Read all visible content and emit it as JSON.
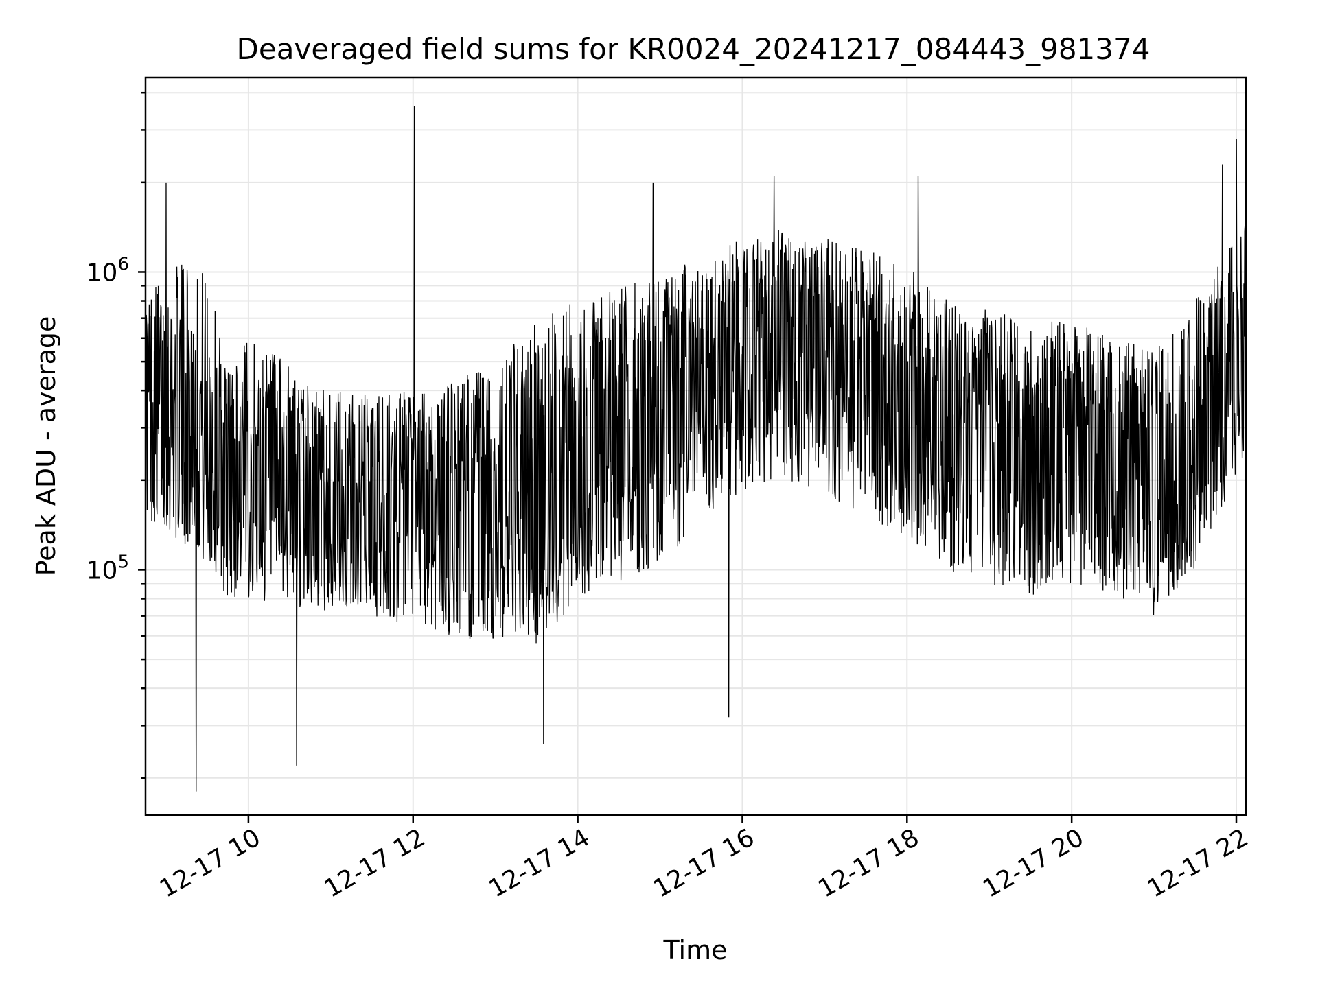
{
  "chart_data": {
    "type": "line",
    "title": "Deaveraged field sums for KR0024_20241217_084443_981374",
    "xlabel": "Time",
    "ylabel": "Peak ADU - average",
    "yscale": "log",
    "grid": true,
    "xlim": [
      "2024-12-17 08:45",
      "2024-12-17 22:07"
    ],
    "ylim": [
      15000,
      4500000
    ],
    "x_ticks": [
      {
        "value": "2024-12-17 10:00",
        "label": "12-17 10"
      },
      {
        "value": "2024-12-17 12:00",
        "label": "12-17 12"
      },
      {
        "value": "2024-12-17 14:00",
        "label": "12-17 14"
      },
      {
        "value": "2024-12-17 16:00",
        "label": "12-17 16"
      },
      {
        "value": "2024-12-17 18:00",
        "label": "12-17 18"
      },
      {
        "value": "2024-12-17 20:00",
        "label": "12-17 20"
      },
      {
        "value": "2024-12-17 22:00",
        "label": "12-17 22"
      }
    ],
    "y_ticks": [
      {
        "value": 100000,
        "base": "10",
        "exp": "5"
      },
      {
        "value": 1000000,
        "base": "10",
        "exp": "6"
      }
    ],
    "series": [
      {
        "color": "#000000",
        "samples_per_segment": 20,
        "envelope": [
          {
            "time": "2024-12-17 08:45",
            "median": 330000,
            "low": 150000,
            "high": 900000
          },
          {
            "time": "2024-12-17 09:15",
            "median": 330000,
            "low": 120000,
            "high": 1100000
          },
          {
            "time": "2024-12-17 09:30",
            "median": 280000,
            "low": 100000,
            "high": 1000000
          },
          {
            "time": "2024-12-17 09:45",
            "median": 190000,
            "low": 80000,
            "high": 500000
          },
          {
            "time": "2024-12-17 10:00",
            "median": 200000,
            "low": 80000,
            "high": 600000
          },
          {
            "time": "2024-12-17 11:00",
            "median": 160000,
            "low": 70000,
            "high": 400000
          },
          {
            "time": "2024-12-17 12:00",
            "median": 160000,
            "low": 65000,
            "high": 400000
          },
          {
            "time": "2024-12-17 13:00",
            "median": 150000,
            "low": 55000,
            "high": 500000
          },
          {
            "time": "2024-12-17 13:30",
            "median": 160000,
            "low": 55000,
            "high": 700000
          },
          {
            "time": "2024-12-17 14:00",
            "median": 230000,
            "low": 80000,
            "high": 800000
          },
          {
            "time": "2024-12-17 15:00",
            "median": 300000,
            "low": 100000,
            "high": 1000000
          },
          {
            "time": "2024-12-17 15:30",
            "median": 400000,
            "low": 150000,
            "high": 1100000
          },
          {
            "time": "2024-12-17 16:00",
            "median": 500000,
            "low": 180000,
            "high": 1300000
          },
          {
            "time": "2024-12-17 16:30",
            "median": 560000,
            "low": 200000,
            "high": 1400000
          },
          {
            "time": "2024-12-17 17:00",
            "median": 500000,
            "low": 180000,
            "high": 1300000
          },
          {
            "time": "2024-12-17 17:30",
            "median": 450000,
            "low": 150000,
            "high": 1200000
          },
          {
            "time": "2024-12-17 18:00",
            "median": 380000,
            "low": 130000,
            "high": 1100000
          },
          {
            "time": "2024-12-17 18:30",
            "median": 300000,
            "low": 100000,
            "high": 800000
          },
          {
            "time": "2024-12-17 19:00",
            "median": 260000,
            "low": 90000,
            "high": 750000
          },
          {
            "time": "2024-12-17 19:30",
            "median": 260000,
            "low": 80000,
            "high": 700000
          },
          {
            "time": "2024-12-17 20:00",
            "median": 260000,
            "low": 90000,
            "high": 700000
          },
          {
            "time": "2024-12-17 20:30",
            "median": 230000,
            "low": 80000,
            "high": 600000
          },
          {
            "time": "2024-12-17 21:00",
            "median": 190000,
            "low": 70000,
            "high": 550000
          },
          {
            "time": "2024-12-17 21:30",
            "median": 250000,
            "low": 100000,
            "high": 800000
          },
          {
            "time": "2024-12-17 22:07",
            "median": 550000,
            "low": 250000,
            "high": 1500000
          }
        ],
        "spikes": [
          {
            "time": "2024-12-17 09:00",
            "value": 2000000
          },
          {
            "time": "2024-12-17 09:22",
            "value": 18000
          },
          {
            "time": "2024-12-17 10:35",
            "value": 22000
          },
          {
            "time": "2024-12-17 12:01",
            "value": 3600000
          },
          {
            "time": "2024-12-17 13:35",
            "value": 26000
          },
          {
            "time": "2024-12-17 14:55",
            "value": 2000000
          },
          {
            "time": "2024-12-17 15:50",
            "value": 32000
          },
          {
            "time": "2024-12-17 16:23",
            "value": 2100000
          },
          {
            "time": "2024-12-17 18:08",
            "value": 2100000
          },
          {
            "time": "2024-12-17 21:50",
            "value": 2300000
          },
          {
            "time": "2024-12-17 22:00",
            "value": 2800000
          }
        ]
      }
    ]
  }
}
